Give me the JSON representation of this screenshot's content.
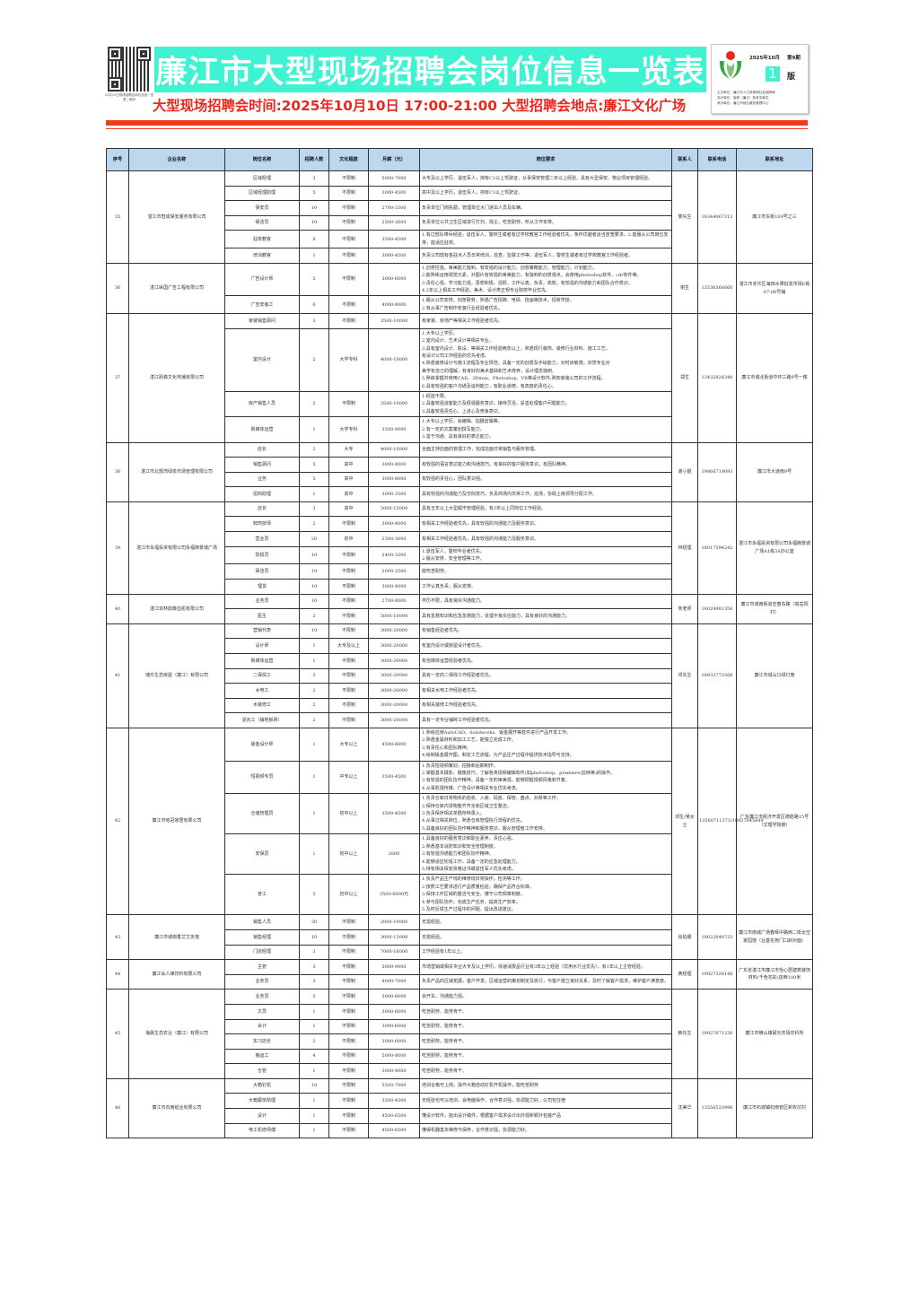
{
  "header": {
    "qr_caption": "10月10日现场招聘会岗位信息一览表二维码",
    "title": "廉江市大型现场招聘会岗位信息一览表",
    "subtitle": "大型现场招聘会时间:2025年10月10日 17:00-21:00 大型招聘会地点:廉江文化广场",
    "issue_date": "2025年10月",
    "issue_no": "第9期",
    "page_no": "1",
    "page_label": "版",
    "organizers": [
      "主办单位：廉江市人力资源和社会保障局",
      "协办单位：客家（廉江）各有关单位",
      "承办单位：廉江市就业服务管理中心"
    ],
    "accent_color": "#3ef2d2",
    "red_color": "#e8281e"
  },
  "table": {
    "columns": [
      "序号",
      "企业名称",
      "岗位名称",
      "招聘人数",
      "文化程度",
      "月薪（元）",
      "岗位要求",
      "联系人",
      "联系电话",
      "联系地址"
    ],
    "companies": [
      {
        "seq": "35",
        "name": "湛江市智成保安服务有限公司",
        "contact": "黎先生",
        "phone": "18344067313",
        "address": "廉江市东街169号之三",
        "jobs": [
          {
            "title": "区域经理",
            "count": "3",
            "edu": "不限制",
            "salary": "5000-7000",
            "req": [
              "大专及以上学历，退伍军人，持有C1以上驾驶证，从事保安管理二年以上经验，具有大型保安、物业项目管理经验。"
            ]
          },
          {
            "title": "区域经理助理",
            "count": "5",
            "edu": "不限制",
            "salary": "3000-4500",
            "req": [
              "高中及以上学历，退伍军人，持有C1以上驾驶证。"
            ]
          },
          {
            "title": "保安员",
            "count": "10",
            "edu": "不限制",
            "salary": "2700-3300",
            "req": [
              "负责单位门岗执勤，管理单位大门进出人员及车辆。"
            ]
          },
          {
            "title": "保洁员",
            "count": "10",
            "edu": "不限制",
            "salary": "2500-2600",
            "req": [
              "负责单位公共卫生区域进行打扫，除尘，吃苦耐劳，听从工作安排。"
            ]
          },
          {
            "title": "驻校教官",
            "count": "8",
            "edu": "不限制",
            "salary": "3500-4500",
            "req": [
              "1.有过部队带兵经验，退伍军人，警校生或者有过学校教官工作经验者优先，条件优越者适当放宽要求。2.能服从公司岗位安排，能适应驻校。"
            ]
          },
          {
            "title": "培训教官",
            "count": "1",
            "edu": "不限制",
            "salary": "3000-4500",
            "req": [
              "负责公司辖有各驻点人员日常培训，巡查，监督工作等，退伍军人，警校生或者有过学校教官工作经验者。"
            ]
          }
        ]
      },
      {
        "seq": "36",
        "name": "湛江纵国广告工程有限公司",
        "contact": "谢生",
        "phone": "13536366666",
        "address": "湛江市赤坎区海田水果批发市场E栋07-08号铺",
        "jobs": [
          {
            "title": "广告设计师",
            "count": "5",
            "edu": "不限制",
            "salary": "3000-6000",
            "req": [
              "1.创意性强，审美能力独到，有较强的设计能力，创意策略能力，管理能力，计划能力。",
              "2.能熟练运用视觉元素，对图片有较强的审美能力，有独到的创意观点，会使用photoshop软件、cdr软件等。",
              "3.责任心强，学习能力强，思想积极，活跃，工作认真，负责，高效，有较强的沟通能力和团队合作意识。",
              "4.2年以上相关工作经验，美术、设计类正规专业院校毕业优先。"
            ]
          },
          {
            "title": "广告安装工",
            "count": "6",
            "edu": "不限制",
            "salary": "4000-8000",
            "req": [
              "1.服从公司安排，刻苦耐劳，熟悉广告招牌、电焊、挂画等技术，招收学徒。",
              "2.有从事广告制作安装行业经验者优先。"
            ]
          }
        ]
      },
      {
        "seq": "37",
        "name": "湛江跃森文化传播有限公司",
        "contact": "郑生",
        "phone": "13432828340",
        "address": "廉江市城北街道中环三路9号一楼",
        "jobs": [
          {
            "title": "家装销售顾问",
            "count": "3",
            "edu": "不限制",
            "salary": "3500-10000",
            "req": [
              "有家装、房地产等相关工作经验者优先。"
            ]
          },
          {
            "title": "室内设计",
            "count": "2",
            "edu": "大学专科",
            "salary": "4000-10000",
            "req": [
              "1.大专以上学历。",
              "2.室内设计、艺术设计等相关专业。",
              "3.具有室内设计、陈设、等相关工作经验两年以上，熟悉现行装饰、装修行业材料、施工工艺。",
              "有设计公司工作经验的优先考虑。",
              "4.熟悉装修设计与施工流程及专业规范，具备一定的创意及手绘能力，对时尚敏感，欣赏专业对",
              "美学有自己的理解，有良好的美术基础和艺术修养，设计理念独到。",
              "5.熟练掌握并使用CAD、3Dmax、Photoshop、VR等设计软件;熟知家装公司的工作流程。",
              "6.具有较强的客户沟通及谈判能力，有职业道德，有高度的责任心。"
            ]
          },
          {
            "title": "房产销售人员",
            "count": "2",
            "edu": "不限制",
            "salary": "3500-10000",
            "req": [
              "1.经验不限。",
              "2.具备较强谈客能力及很强服务意识，接待灵活，妥善处理客户问题能力。",
              "3.具备较强责任心、上进心及竞争意识。"
            ]
          },
          {
            "title": "新媒体运营",
            "count": "1",
            "edu": "大学专科",
            "salary": "3500-9000",
            "req": [
              "1.大专以上学历，会编辑、拍摄剪辑等。",
              "2.有一定的文案策划撰写能力。",
              "3.善于沟通、具有良好的表达能力。"
            ]
          }
        ]
      },
      {
        "seq": "38",
        "name": "湛江市北部湾绿泉市场管理有限公司",
        "contact": "谢小姐",
        "phone": "19866719093",
        "address": "廉江市大道南9号",
        "jobs": [
          {
            "title": "店长",
            "count": "2",
            "edu": "大专",
            "salary": "4000-10000",
            "req": [
              "全面主持店面的管理工作，完成店面日常销售与服务管理。"
            ]
          },
          {
            "title": "销售顾问",
            "count": "5",
            "edu": "高中",
            "salary": "3000-8000",
            "req": [
              "有较强的语言表达能力和沟通技巧，有良好的客户服务意识，有团队精神。"
            ]
          },
          {
            "title": "业务",
            "count": "5",
            "edu": "高中",
            "salary": "3000-8000",
            "req": [
              "有较强的责任心，团队意识强。"
            ]
          },
          {
            "title": "招商助理",
            "count": "1",
            "edu": "高中",
            "salary": "3000-3500",
            "req": [
              "具有较强的沟通能力及交际技巧，负责商场内日常工作，巡场，协助上级领导分配工作。"
            ]
          }
        ]
      },
      {
        "seq": "39",
        "name": "湛江市永福投资有限公司永福御景城广场",
        "contact": "林经理",
        "phone": "18017594242",
        "address": "湛江市永福投资有限公司永福御景城广场A1栋3A办公室",
        "jobs": [
          {
            "title": "店长",
            "count": "3",
            "edu": "高中",
            "salary": "5000-15000",
            "req": [
              "具有五年以上大型超市管理经验，有3年以上同岗位工作经验。"
            ]
          },
          {
            "title": "鲜肉技师",
            "count": "2",
            "edu": "不限制",
            "salary": "3000-4000",
            "req": [
              "有相关工作经验者优先，具有较强的沟通能力及服务意识。"
            ]
          },
          {
            "title": "营业员",
            "count": "20",
            "edu": "初中",
            "salary": "2300-3000",
            "req": [
              "有相关工作经验者优先，具有较强的沟通能力及服务意识。"
            ]
          },
          {
            "title": "防损员",
            "count": "10",
            "edu": "不限制",
            "salary": "2400-3300",
            "req": [
              "1.退伍军人，警校毕业者优先。",
              "2.服从安排，安全管理等工作。"
            ]
          },
          {
            "title": "保洁员",
            "count": "10",
            "edu": "不限制",
            "salary": "2000-2500",
            "req": [
              "能吃苦耐劳。"
            ]
          },
          {
            "title": "理货",
            "count": "10",
            "edu": "不限制",
            "salary": "3000-4000",
            "req": [
              "工作认真负责，服从安排。"
            ]
          }
        ]
      },
      {
        "seq": "40",
        "name": "湛江双林鼎泰血机有限公司",
        "contact": "朱老师",
        "phone": "18024981356",
        "address": "廉江市城南街道吉春东路（高岳垌村）",
        "jobs": [
          {
            "title": "业务员",
            "count": "10",
            "edu": "不限制",
            "salary": "2700-8000",
            "req": [
              "学历不限，具有良好沟通能力。"
            ]
          },
          {
            "title": "医生",
            "count": "2",
            "edu": "不限制",
            "salary": "5000-10000",
            "req": [
              "具有急救知识和应急急救能力，处理不良反应能力，具有良好的沟通能力。"
            ]
          }
        ]
      },
      {
        "seq": "41",
        "name": "瑞乐生态房屋（廉江）有限公司",
        "contact": "邓先生",
        "phone": "18933773568",
        "address": "廉江市城山口绿灯旁",
        "jobs": [
          {
            "title": "营销代表",
            "count": "10",
            "edu": "不限制",
            "salary": "3000-20000",
            "req": [
              "有销售经验者优先。"
            ]
          },
          {
            "title": "设计师",
            "count": "1",
            "edu": "大专及以上",
            "salary": "3000-20000",
            "req": [
              "有室内设计或房屋设计者优先。"
            ]
          },
          {
            "title": "新媒体运营",
            "count": "1",
            "edu": "不限制",
            "salary": "3000-20000",
            "req": [
              "有自媒体运营经验者优先。"
            ]
          },
          {
            "title": "二保焊工",
            "count": "3",
            "edu": "不限制",
            "salary": "3000-20000",
            "req": [
              "具有一定的二保焊工作经验者优先。"
            ]
          },
          {
            "title": "水电工",
            "count": "2",
            "edu": "不限制",
            "salary": "3000-20000",
            "req": [
              "有相关水电工作经验者优先。"
            ]
          },
          {
            "title": "木装修工",
            "count": "2",
            "edu": "不限制",
            "salary": "3000-20000",
            "req": [
              "有相关装修工作经验者优先。"
            ]
          },
          {
            "title": "泥瓦工（铺地板砖）",
            "count": "2",
            "edu": "不限制",
            "salary": "3000-20000",
            "req": [
              "具有一定专业铺砖工作经验者优先。"
            ]
          }
        ]
      },
      {
        "seq": "42",
        "name": "廉江市哈冠家居有限公司",
        "contact": "邓生/吴女士",
        "phone": "13560711373/18927645849",
        "address": "广东廉江市经济开发区德胜路15号（文理学院旁）",
        "jobs": [
          {
            "title": "钣金设计师",
            "count": "1",
            "edu": "大专以上",
            "salary": "4500-6000",
            "req": [
              "1.熟练应用AutoCAD、Solidworks、钣金展开等软件进行产品开发工作。",
              "2.熟悉金属材料和加工工艺，能独立完成工作。",
              "3.有责任心和团队精神。",
              "4.绘制钣金展开图，制定工艺流程，为产品生产过程中提供技术指导与支持。"
            ]
          },
          {
            "title": "短视频专员",
            "count": "1",
            "edu": "中专以上",
            "salary": "3500-4500",
            "req": [
              "1.负责短视频策划，拍摄和后期制作。",
              "2.掌握基本摄影、摄像技巧，了解各类视频编辑软件(如photoshop、premiere\\剪映等)的操作。",
              "3.有较强的团队协作精神，具备一定的审美观，能够把握视频风格和节奏。",
              "4.从事影视传媒、广告设计等相关专业优先考虑。"
            ]
          },
          {
            "title": "仓储管理员",
            "count": "1",
            "edu": "初中以上",
            "salary": "3500-4500",
            "req": [
              "1.负责仓库日常物资的验收、入库、码放、保管、盘点、对账等工作。",
              "2.保持仓库内货物整齐齐全和区域卫生整洁。",
              "3.负责保存相关单据存档录入。",
              "4.从事过相关岗位，熟悉仓库管理执行流程的优先。",
              "5.具备良好的团队协作精神和服务意识，服从管理者工作安排。"
            ]
          },
          {
            "title": "安保员",
            "count": "1",
            "edu": "初中以上",
            "salary": "2800",
            "req": [
              "1.具备良好的服务意识和职业素养，责任心强。",
              "2.熟悉基本消防知识和安全管理制度。",
              "3.有较强沟通能力和团队协作精神。",
              "4.能够适应轮班工作，具备一定的应急处理能力。",
              "5.持有相关保安资格证书或退伍军人优先考虑。"
            ]
          },
          {
            "title": "普工",
            "count": "5",
            "edu": "初中以上",
            "salary": "3500-6000元",
            "req": [
              "1.负责产品生产线的维修线日常操作，检测等工作。",
              "2.按照工艺要求进行产品质量检验，确保产品符合标准。",
              "3.保持工作区域的整洁与安全，遵守公司规章制度。",
              "4.参与团队协作，完成生产任务，提高生产效率。",
              "5.及时反馈生产过程中的问题，提出改进建议。"
            ]
          }
        ]
      },
      {
        "seq": "43",
        "name": "廉江市城南香艾艾灸馆",
        "contact": "肖伯娜",
        "phone": "18022640723",
        "address": "廉江市南城广场春晖中路西二街太空家园馆（业基花苑门口斜对面）",
        "jobs": [
          {
            "title": "销售人员",
            "count": "20",
            "edu": "不限制",
            "salary": "2000-10000",
            "req": [
              "无需经验。"
            ]
          },
          {
            "title": "销售经理",
            "count": "10",
            "edu": "不限制",
            "salary": "3000-13000",
            "req": [
              "无需经验。"
            ]
          },
          {
            "title": "门店经理",
            "count": "3",
            "edu": "不限制",
            "salary": "7000-16000",
            "req": [
              "工作经验有1年以上。"
            ]
          }
        ]
      },
      {
        "seq": "44",
        "name": "廉江仙人峰饮料有限公司",
        "contact": "黄经理",
        "phone": "19927328148",
        "address": "广东省湛江市廉江市怡心居建筑装饰材料(千色花彩)店西100米",
        "jobs": [
          {
            "title": "主管",
            "count": "3",
            "edu": "不限制",
            "salary": "5000-9000",
            "req": [
              "市场营销或相关专业大专及以上学历，快速消费品行业有3年以上经验（饮用水行业优先），有1年以上主管经验。"
            ]
          },
          {
            "title": "业务员",
            "count": "3",
            "edu": "不限制",
            "salary": "4000-7000",
            "req": [
              "负责产品的区域拓展，客户开发，区域运营的策划制定及执行，与客户建立良好关系，及时了解客户需求，维护客户满意度。"
            ]
          }
        ]
      },
      {
        "seq": "45",
        "name": "海晨生态农业（廉江）有限公司",
        "contact": "赖先生",
        "phone": "18927671230",
        "address": "廉江市横山镇晨光农场农科所",
        "jobs": [
          {
            "title": "业务员",
            "count": "5",
            "edu": "不限制",
            "salary": "3000-6000",
            "req": [
              "会开车，沟通能力强。"
            ]
          },
          {
            "title": "文员",
            "count": "1",
            "edu": "不限制",
            "salary": "3000-6000",
            "req": [
              "吃苦耐劳，能劳肯干。"
            ]
          },
          {
            "title": "会计",
            "count": "1",
            "edu": "不限制",
            "salary": "3000-6000",
            "req": [
              "吃苦耐劳，能劳肯干。"
            ]
          },
          {
            "title": "实习店长",
            "count": "2",
            "edu": "不限制",
            "salary": "3000-6000",
            "req": [
              "吃苦耐劳，能劳肯干。"
            ]
          },
          {
            "title": "搬运工",
            "count": "4",
            "edu": "不限制",
            "salary": "5000-8000",
            "req": [
              "吃苦耐劳，能劳肯干。"
            ]
          },
          {
            "title": "仓管",
            "count": "1",
            "edu": "不限制",
            "salary": "3000-4000",
            "req": [
              "吃苦耐劳，能劳肯干。"
            ]
          }
        ]
      },
      {
        "seq": "46",
        "name": "廉江市石南纸业有限公司",
        "contact": "沈美华",
        "phone": "13556533996",
        "address": "廉江市石城镇石南管区新权坑村",
        "jobs": [
          {
            "title": "大箱钉机",
            "count": "10",
            "edu": "不限制",
            "salary": "5500-7000",
            "req": [
              "培训合格可上岗，操作大箱自动钉机开机操作，能吃苦耐劳"
            ]
          },
          {
            "title": "大箱跟单助理",
            "count": "1",
            "edu": "不限制",
            "salary": "3500-4500",
            "req": [
              "无经验也可以培训，会电脑操作，合作意识强，协调能力好，公司包住宿"
            ]
          },
          {
            "title": "设计",
            "count": "1",
            "edu": "不限制",
            "salary": "4500-6500",
            "req": [
              "懂设计软件，能出设计稿件，根据客户需求设计出外观新颖外包装产品"
            ]
          },
          {
            "title": "电工机修师傅",
            "count": "1",
            "edu": "不限制",
            "salary": "4500-6500",
            "req": [
              "懂得机器基本维修与保养，合作意识强，协调能力好。"
            ]
          }
        ]
      }
    ]
  }
}
